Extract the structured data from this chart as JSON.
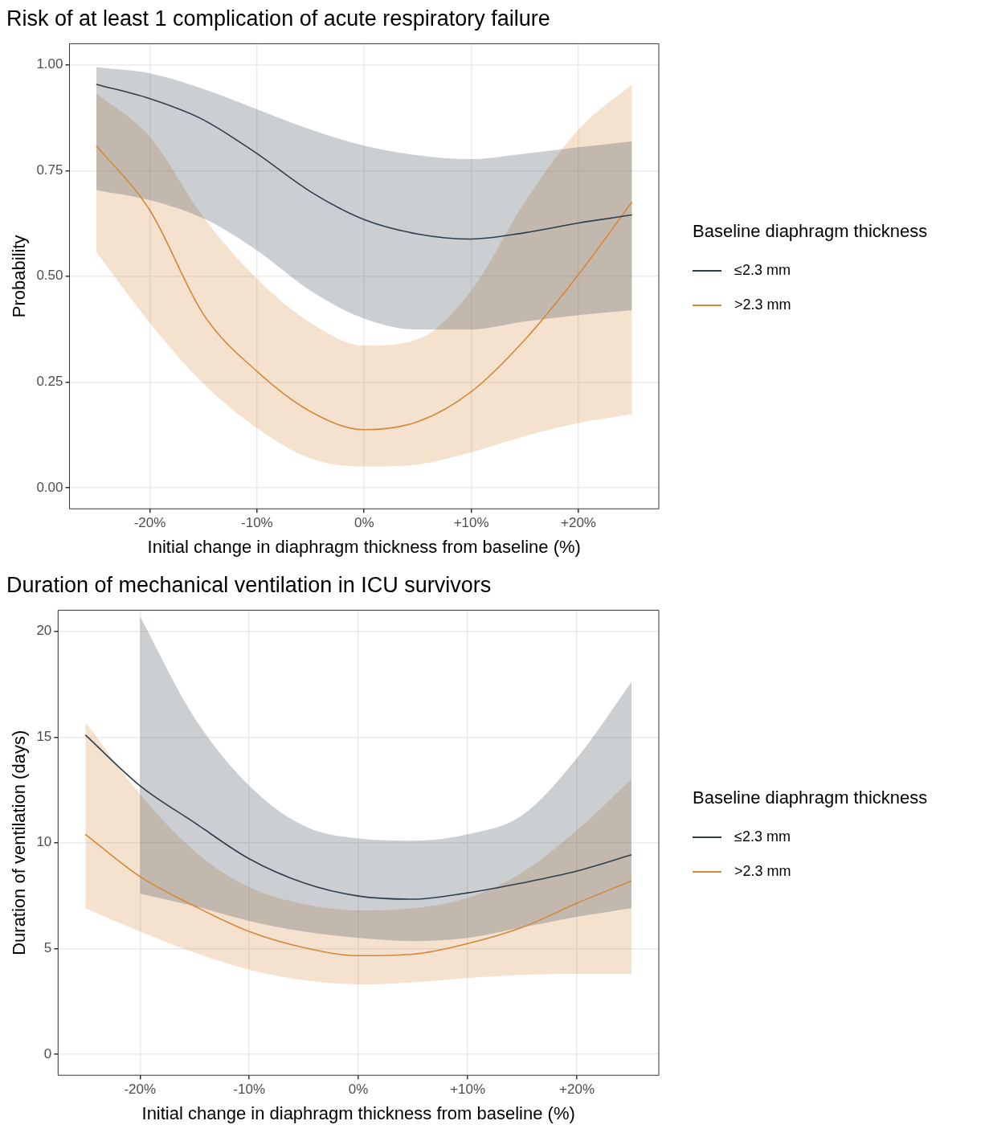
{
  "chart_data": [
    {
      "type": "line",
      "title": "Risk of at least 1 complication of acute respiratory failure",
      "xlabel": "Initial change in diaphragm thickness from baseline (%)",
      "ylabel": "Probability",
      "legend_title": "Baseline diaphragm thickness",
      "legend": "right",
      "grid": true,
      "x": [
        -25,
        -20,
        -15,
        -10,
        -5,
        0,
        5,
        10,
        15,
        20,
        25
      ],
      "xlim": [
        -27.5,
        27.5
      ],
      "xticks": [
        {
          "value": -20,
          "label": "-20%"
        },
        {
          "value": -10,
          "label": "-10%"
        },
        {
          "value": 0,
          "label": "0%"
        },
        {
          "value": 10,
          "label": "+10%"
        },
        {
          "value": 20,
          "label": "+20%"
        }
      ],
      "ylim": [
        -0.05,
        1.05
      ],
      "yticks": [
        {
          "value": 0,
          "label": "0.00"
        },
        {
          "value": 0.25,
          "label": "0.25"
        },
        {
          "value": 0.5,
          "label": "0.50"
        },
        {
          "value": 0.75,
          "label": "0.75"
        },
        {
          "value": 1,
          "label": "1.00"
        }
      ],
      "series": [
        {
          "name": "≤2.3 mm",
          "color": "#2f3f4a",
          "values": [
            0.954,
            0.92,
            0.87,
            0.79,
            0.7,
            0.634,
            0.6,
            0.588,
            0.603,
            0.626,
            0.645
          ],
          "lower": [
            0.704,
            0.68,
            0.637,
            0.561,
            0.466,
            0.4,
            0.374,
            0.374,
            0.393,
            0.408,
            0.42
          ],
          "upper": [
            0.994,
            0.98,
            0.943,
            0.895,
            0.847,
            0.809,
            0.786,
            0.777,
            0.79,
            0.805,
            0.819
          ]
        },
        {
          "name": ">2.3 mm",
          "color": "#d4883a",
          "values": [
            0.809,
            0.656,
            0.41,
            0.275,
            0.18,
            0.137,
            0.156,
            0.227,
            0.35,
            0.504,
            0.676
          ],
          "lower": [
            0.557,
            0.39,
            0.246,
            0.141,
            0.069,
            0.05,
            0.055,
            0.084,
            0.122,
            0.153,
            0.174
          ],
          "upper": [
            0.933,
            0.83,
            0.64,
            0.494,
            0.39,
            0.336,
            0.351,
            0.466,
            0.676,
            0.847,
            0.954
          ]
        }
      ]
    },
    {
      "type": "line",
      "title": "Duration of mechanical ventilation in ICU survivors",
      "xlabel": "Initial change in diaphragm thickness from baseline (%)",
      "ylabel": "Duration of ventilation (days)",
      "legend_title": "Baseline diaphragm thickness",
      "legend": "right",
      "grid": true,
      "x": [
        -25,
        -20,
        -15,
        -10,
        -5,
        0,
        5,
        10,
        15,
        20,
        25
      ],
      "xlim": [
        -27.5,
        27.5
      ],
      "xticks": [
        {
          "value": -20,
          "label": "-20%"
        },
        {
          "value": -10,
          "label": "-10%"
        },
        {
          "value": 0,
          "label": "0%"
        },
        {
          "value": 10,
          "label": "+10%"
        },
        {
          "value": 20,
          "label": "+20%"
        }
      ],
      "ylim": [
        -1,
        21
      ],
      "yticks": [
        0,
        5,
        10,
        15,
        20
      ],
      "series": [
        {
          "name": "≤2.3 mm",
          "color": "#2f3f4a",
          "values": [
            15.1,
            12.7,
            10.95,
            9.24,
            8.1,
            7.48,
            7.33,
            7.63,
            8.1,
            8.66,
            9.43
          ],
          "lower": [
            null,
            7.6,
            7.0,
            6.3,
            5.8,
            5.5,
            5.35,
            5.5,
            6.0,
            6.5,
            6.9
          ],
          "upper": [
            null,
            20.7,
            15.9,
            12.7,
            10.8,
            10.2,
            10.1,
            10.4,
            11.3,
            14.0,
            17.6
          ]
        },
        {
          "name": ">2.3 mm",
          "color": "#d4883a",
          "values": [
            10.4,
            8.4,
            7.0,
            5.8,
            5.04,
            4.66,
            4.73,
            5.23,
            6.0,
            7.14,
            8.2
          ],
          "lower": [
            6.9,
            5.8,
            4.8,
            4.0,
            3.5,
            3.3,
            3.4,
            3.6,
            3.75,
            3.8,
            3.8
          ],
          "upper": [
            15.7,
            12.3,
            9.6,
            7.9,
            7.1,
            6.8,
            6.9,
            7.4,
            8.6,
            10.6,
            13.0
          ]
        }
      ]
    }
  ]
}
